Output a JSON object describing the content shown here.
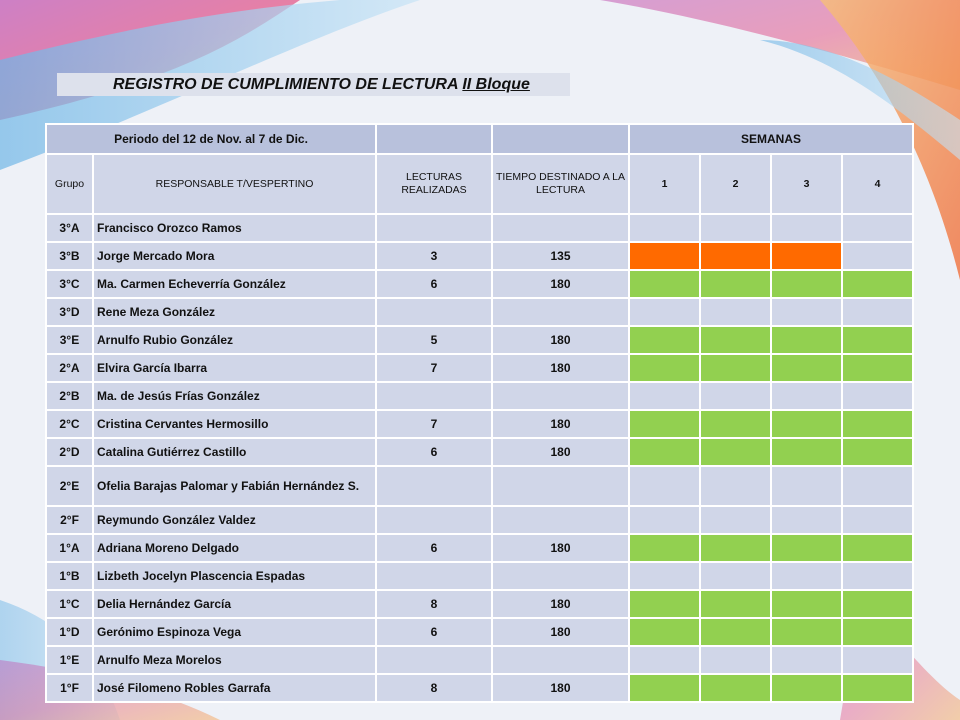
{
  "title": {
    "main": "REGISTRO DE CUMPLIMIENTO DE LECTURA ",
    "bloque": "II Bloque"
  },
  "header": {
    "periodo": "Periodo del 12 de Nov. al 7 de Dic.",
    "semanas": "SEMANAS",
    "col_grupo": "Grupo",
    "col_responsable": "RESPONSABLE T/VESPERTINO",
    "col_lecturas": "LECTURAS REALIZADAS",
    "col_tiempo": "TIEMPO DESTINADO A LA LECTURA",
    "weeks": [
      "1",
      "2",
      "3",
      "4"
    ]
  },
  "colors": {
    "orange": "#ff6a00",
    "green": "#92d050"
  },
  "rows": [
    {
      "grupo": "3°A",
      "responsable": "Francisco Orozco Ramos",
      "lecturas": "",
      "tiempo": "",
      "weeks": [
        "",
        "",
        "",
        ""
      ]
    },
    {
      "grupo": "3°B",
      "responsable": "Jorge Mercado Mora",
      "lecturas": "3",
      "tiempo": "135",
      "weeks": [
        "orange",
        "orange",
        "orange",
        ""
      ]
    },
    {
      "grupo": "3°C",
      "responsable": "Ma. Carmen Echeverría González",
      "lecturas": "6",
      "tiempo": "180",
      "weeks": [
        "green",
        "green",
        "green",
        "green"
      ]
    },
    {
      "grupo": "3°D",
      "responsable": "Rene Meza González",
      "lecturas": "",
      "tiempo": "",
      "weeks": [
        "",
        "",
        "",
        ""
      ]
    },
    {
      "grupo": "3°E",
      "responsable": "Arnulfo Rubio González",
      "lecturas": "5",
      "tiempo": "180",
      "weeks": [
        "green",
        "green",
        "green",
        "green"
      ]
    },
    {
      "grupo": "2°A",
      "responsable": "Elvira García Ibarra",
      "lecturas": "7",
      "tiempo": "180",
      "weeks": [
        "green",
        "green",
        "green",
        "green"
      ]
    },
    {
      "grupo": "2°B",
      "responsable": "Ma. de Jesús Frías González",
      "lecturas": "",
      "tiempo": "",
      "weeks": [
        "",
        "",
        "",
        ""
      ]
    },
    {
      "grupo": "2°C",
      "responsable": "Cristina Cervantes Hermosillo",
      "lecturas": "7",
      "tiempo": "180",
      "weeks": [
        "green",
        "green",
        "green",
        "green"
      ]
    },
    {
      "grupo": "2°D",
      "responsable": "Catalina Gutiérrez Castillo",
      "lecturas": "6",
      "tiempo": "180",
      "weeks": [
        "green",
        "green",
        "green",
        "green"
      ]
    },
    {
      "grupo": "2°E",
      "responsable": "Ofelia Barajas Palomar y Fabián Hernández S.",
      "lecturas": "",
      "tiempo": "",
      "weeks": [
        "",
        "",
        "",
        ""
      ]
    },
    {
      "grupo": "2°F",
      "responsable": "Reymundo González Valdez",
      "lecturas": "",
      "tiempo": "",
      "weeks": [
        "",
        "",
        "",
        ""
      ]
    },
    {
      "grupo": "1°A",
      "responsable": "Adriana Moreno Delgado",
      "lecturas": "6",
      "tiempo": "180",
      "weeks": [
        "green",
        "green",
        "green",
        "green"
      ]
    },
    {
      "grupo": "1°B",
      "responsable": "Lizbeth Jocelyn Plascencia Espadas",
      "lecturas": "",
      "tiempo": "",
      "weeks": [
        "",
        "",
        "",
        ""
      ]
    },
    {
      "grupo": "1°C",
      "responsable": "Delia Hernández García",
      "lecturas": "8",
      "tiempo": "180",
      "weeks": [
        "green",
        "green",
        "green",
        "green"
      ]
    },
    {
      "grupo": "1°D",
      "responsable": "Gerónimo Espinoza Vega",
      "lecturas": "6",
      "tiempo": "180",
      "weeks": [
        "green",
        "green",
        "green",
        "green"
      ]
    },
    {
      "grupo": "1°E",
      "responsable": "Arnulfo Meza Morelos",
      "lecturas": "",
      "tiempo": "",
      "weeks": [
        "",
        "",
        "",
        ""
      ]
    },
    {
      "grupo": "1°F",
      "responsable": "José Filomeno Robles Garrafa",
      "lecturas": "8",
      "tiempo": "180",
      "weeks": [
        "green",
        "green",
        "green",
        "green"
      ]
    }
  ]
}
